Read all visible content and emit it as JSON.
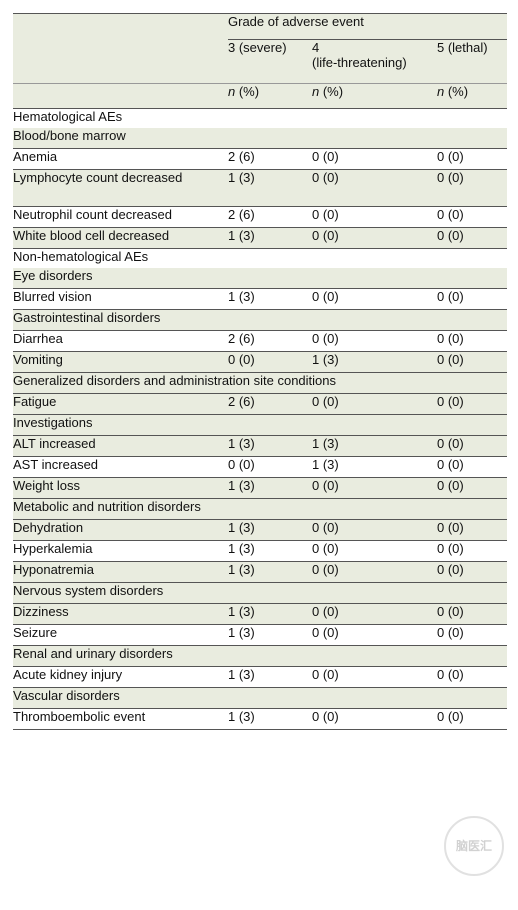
{
  "header": {
    "group_label": "Grade of adverse event",
    "columns": [
      {
        "label": "3 (severe)"
      },
      {
        "label": "4\n(life-threatening)"
      },
      {
        "label": "5 (lethal)"
      }
    ],
    "unit_n": "n",
    "unit_pct": " (%)"
  },
  "rows": [
    {
      "type": "section",
      "label": "Hematological AEs"
    },
    {
      "type": "group",
      "label": "Blood/bone marrow"
    },
    {
      "type": "item",
      "label": "Anemia",
      "values": [
        "2 (6)",
        "0 (0)",
        "0 (0)"
      ],
      "shaded": false
    },
    {
      "type": "item",
      "label": "Lymphocyte count decreased",
      "values": [
        "1 (3)",
        "0 (0)",
        "0 (0)"
      ],
      "shaded": true,
      "tall": true
    },
    {
      "type": "item",
      "label": "Neutrophil count decreased",
      "values": [
        "2 (6)",
        "0 (0)",
        "0 (0)"
      ],
      "shaded": false
    },
    {
      "type": "item",
      "label": "White blood cell decreased",
      "values": [
        "1 (3)",
        "0 (0)",
        "0 (0)"
      ],
      "shaded": true
    },
    {
      "type": "section",
      "label": "Non-hematological AEs"
    },
    {
      "type": "group",
      "label": "Eye disorders"
    },
    {
      "type": "item",
      "label": "Blurred vision",
      "values": [
        "1 (3)",
        "0 (0)",
        "0 (0)"
      ],
      "shaded": false
    },
    {
      "type": "group",
      "label": "Gastrointestinal disorders"
    },
    {
      "type": "item",
      "label": "Diarrhea",
      "values": [
        "2 (6)",
        "0 (0)",
        "0 (0)"
      ],
      "shaded": false
    },
    {
      "type": "item",
      "label": "Vomiting",
      "values": [
        "0 (0)",
        "1 (3)",
        "0 (0)"
      ],
      "shaded": true
    },
    {
      "type": "group",
      "label": "Generalized disorders and administration site conditions"
    },
    {
      "type": "item",
      "label": "Fatigue",
      "values": [
        "2 (6)",
        "0 (0)",
        "0 (0)"
      ],
      "shaded": true
    },
    {
      "type": "group",
      "label": "Investigations"
    },
    {
      "type": "item",
      "label": "ALT increased",
      "values": [
        "1 (3)",
        "1 (3)",
        "0 (0)"
      ],
      "shaded": true
    },
    {
      "type": "item",
      "label": "AST increased",
      "values": [
        "0 (0)",
        "1 (3)",
        "0 (0)"
      ],
      "shaded": false
    },
    {
      "type": "item",
      "label": "Weight loss",
      "values": [
        "1 (3)",
        "0 (0)",
        "0 (0)"
      ],
      "shaded": true
    },
    {
      "type": "group",
      "label": "Metabolic and nutrition disorders"
    },
    {
      "type": "item",
      "label": "Dehydration",
      "values": [
        "1 (3)",
        "0 (0)",
        "0 (0)"
      ],
      "shaded": true
    },
    {
      "type": "item",
      "label": "Hyperkalemia",
      "values": [
        "1 (3)",
        "0 (0)",
        "0 (0)"
      ],
      "shaded": false
    },
    {
      "type": "item",
      "label": "Hyponatremia",
      "values": [
        "1 (3)",
        "0 (0)",
        "0 (0)"
      ],
      "shaded": true
    },
    {
      "type": "group",
      "label": "Nervous system disorders"
    },
    {
      "type": "item",
      "label": "Dizziness",
      "values": [
        "1 (3)",
        "0 (0)",
        "0 (0)"
      ],
      "shaded": true
    },
    {
      "type": "item",
      "label": "Seizure",
      "values": [
        "1 (3)",
        "0 (0)",
        "0 (0)"
      ],
      "shaded": false
    },
    {
      "type": "group",
      "label": "Renal and urinary disorders"
    },
    {
      "type": "item",
      "label": "Acute kidney injury",
      "values": [
        "1 (3)",
        "0 (0)",
        "0 (0)"
      ],
      "shaded": false
    },
    {
      "type": "group",
      "label": "Vascular disorders"
    },
    {
      "type": "item",
      "label": "Thromboembolic event",
      "values": [
        "1 (3)",
        "0 (0)",
        "0 (0)"
      ],
      "shaded": false
    }
  ],
  "watermark": {
    "text": "脑医汇"
  },
  "colors": {
    "shade": "#e9ecdf",
    "rule": "#555555"
  }
}
